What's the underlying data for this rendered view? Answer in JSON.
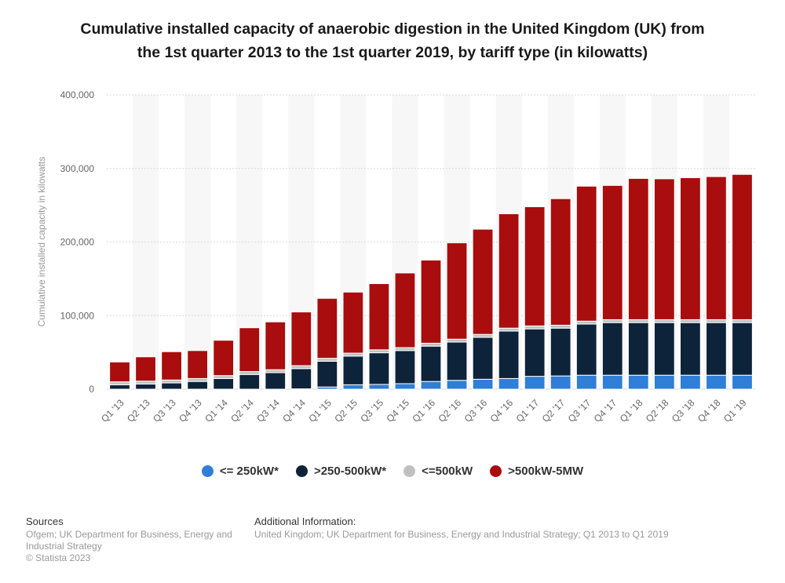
{
  "title_line1": "Cumulative installed capacity of anaerobic digestion in the United Kingdom (UK) from",
  "title_line2": "the 1st quarter 2013 to the 1st quarter 2019, by tariff type (in kilowatts)",
  "sources": {
    "heading": "Sources",
    "line1": "Ofgem; UK Department for Business, Energy and",
    "line2": "Industrial Strategy",
    "line3": "© Statista 2023"
  },
  "additional": {
    "heading": "Additional Information:",
    "line1": "United Kingdom; UK Department for Business, Energy and Industrial Strategy; Q1 2013 to Q1 2019"
  },
  "chart_data": {
    "type": "bar",
    "stacked": true,
    "ylabel": "Cumulative installed capacity in kilowatts",
    "xlabel": "",
    "ylim": [
      0,
      400000
    ],
    "yticks": [
      0,
      100000,
      200000,
      300000,
      400000
    ],
    "ytick_labels": [
      "0",
      "100,000",
      "200,000",
      "300,000",
      "400,000"
    ],
    "legend_position": "bottom",
    "grid": true,
    "categories": [
      "Q1 '13",
      "Q2 '13",
      "Q3 '13",
      "Q4 '13",
      "Q1 '14",
      "Q2 '14",
      "Q3 '14",
      "Q4 '14",
      "Q1 '15",
      "Q2 '15",
      "Q3 '15",
      "Q4 '15",
      "Q1 '16",
      "Q2 '16",
      "Q3 '16",
      "Q4 '16",
      "Q1 '17",
      "Q2 '17",
      "Q3 '17",
      "Q4 '17",
      "Q1 '18",
      "Q2 '18",
      "Q3 '18",
      "Q4 '18",
      "Q1 '19"
    ],
    "series": [
      {
        "name": "<= 250kW*",
        "color": "#2f7ed8",
        "values": [
          0,
          0,
          0,
          0,
          0,
          0,
          0,
          500,
          3000,
          6000,
          6500,
          7500,
          10500,
          12000,
          13500,
          14500,
          17500,
          18000,
          19000,
          19000,
          19000,
          19000,
          19000,
          19000,
          19000
        ]
      },
      {
        "name": ">250-500kW*",
        "color": "#0d233a",
        "values": [
          6000,
          7000,
          8500,
          10500,
          14500,
          20000,
          22500,
          27500,
          35000,
          39000,
          43000,
          45000,
          48000,
          52000,
          57000,
          64500,
          64500,
          65000,
          69500,
          71500,
          71500,
          71500,
          71500,
          71500,
          71500
        ]
      },
      {
        "name": "<=500kW",
        "color": "#c0c0c0",
        "values": [
          4000,
          4000,
          4000,
          4000,
          4000,
          4000,
          4000,
          4000,
          4000,
          4000,
          4000,
          4000,
          4000,
          4000,
          4000,
          4000,
          4000,
          4000,
          4000,
          4000,
          4000,
          4000,
          4000,
          4000,
          4000
        ]
      },
      {
        "name": ">500kW-5MW",
        "color": "#a90d0d",
        "values": [
          27000,
          33000,
          38500,
          38000,
          48000,
          59500,
          65000,
          73000,
          81500,
          83000,
          90000,
          101500,
          113000,
          131000,
          143000,
          155500,
          162000,
          172000,
          183500,
          182500,
          192000,
          191500,
          193000,
          194500,
          197500
        ]
      }
    ]
  }
}
